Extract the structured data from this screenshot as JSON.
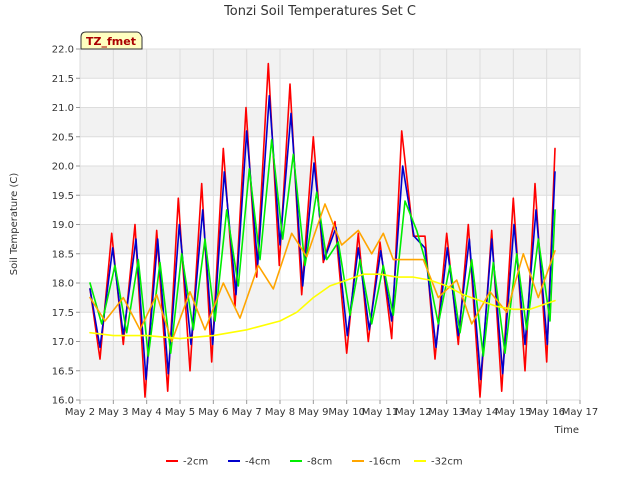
{
  "chart_data": {
    "type": "line",
    "title": "Tonzi Soil Temperatures Set C",
    "tag": "TZ_fmet",
    "xlabel": "Time",
    "ylabel": "Soil Temperature (C)",
    "xlim": [
      2,
      17
    ],
    "ylim": [
      16.0,
      22.0
    ],
    "x_ticks": [
      2,
      3,
      4,
      5,
      6,
      7,
      8,
      9,
      10,
      11,
      12,
      13,
      14,
      15,
      16,
      17
    ],
    "x_tick_labels": [
      "May 2",
      "May 3",
      "May 4",
      "May 5",
      "May 6",
      "May 7",
      "May 8",
      "May 9",
      "May 10",
      "May 11",
      "May 12",
      "May 13",
      "May 14",
      "May 15",
      "May 16",
      "May 17"
    ],
    "y_ticks": [
      16.0,
      16.5,
      17.0,
      17.5,
      18.0,
      18.5,
      19.0,
      19.5,
      20.0,
      20.5,
      21.0,
      21.5,
      22.0
    ],
    "y_tick_labels": [
      "16.0",
      "16.5",
      "17.0",
      "17.5",
      "18.0",
      "18.5",
      "19.0",
      "19.5",
      "20.0",
      "20.5",
      "21.0",
      "21.5",
      "22.0"
    ],
    "grid": true,
    "legend_position": "bottom",
    "series": [
      {
        "name": "-2cm",
        "color": "#ff0000",
        "x": [
          2.3,
          2.6,
          2.95,
          3.3,
          3.65,
          3.95,
          4.3,
          4.63,
          4.95,
          5.3,
          5.65,
          5.95,
          6.3,
          6.65,
          6.98,
          7.3,
          7.65,
          7.98,
          8.3,
          8.65,
          9.0,
          9.3,
          9.65,
          10.0,
          10.35,
          10.65,
          11.0,
          11.35,
          11.65,
          12.0,
          12.35,
          12.65,
          13.0,
          13.35,
          13.65,
          14.0,
          14.35,
          14.65,
          15.0,
          15.35,
          15.65,
          16.0,
          16.25
        ],
        "y": [
          17.9,
          16.7,
          18.85,
          16.95,
          19.0,
          16.05,
          18.9,
          16.15,
          19.45,
          16.5,
          19.7,
          16.65,
          20.3,
          17.6,
          21.0,
          18.1,
          21.75,
          18.3,
          21.4,
          17.8,
          20.5,
          18.35,
          19.05,
          16.8,
          18.85,
          17.0,
          18.7,
          17.05,
          20.6,
          18.8,
          18.8,
          16.7,
          18.85,
          16.95,
          19.0,
          16.05,
          18.9,
          16.15,
          19.45,
          16.5,
          19.7,
          16.65,
          20.3
        ]
      },
      {
        "name": "-4cm",
        "color": "#0000cc",
        "x": [
          2.3,
          2.6,
          2.98,
          3.3,
          3.68,
          3.98,
          4.33,
          4.65,
          4.98,
          5.33,
          5.68,
          5.98,
          6.33,
          6.68,
          7.0,
          7.33,
          7.68,
          8.0,
          8.33,
          8.68,
          9.02,
          9.33,
          9.68,
          10.02,
          10.35,
          10.68,
          11.02,
          11.35,
          11.68,
          12.02,
          12.35,
          12.68,
          13.02,
          13.35,
          13.68,
          14.02,
          14.35,
          14.68,
          15.02,
          15.35,
          15.68,
          16.02,
          16.25
        ],
        "y": [
          17.9,
          16.9,
          18.6,
          17.1,
          18.75,
          16.35,
          18.75,
          16.45,
          19.0,
          16.95,
          19.25,
          16.95,
          19.9,
          17.8,
          20.6,
          18.3,
          21.2,
          18.65,
          20.9,
          17.95,
          20.05,
          18.4,
          18.95,
          17.1,
          18.6,
          17.2,
          18.55,
          17.35,
          20.0,
          18.8,
          18.6,
          16.9,
          18.6,
          17.1,
          18.75,
          16.35,
          18.75,
          16.45,
          19.0,
          16.95,
          19.25,
          16.95,
          19.9
        ]
      },
      {
        "name": "-8cm",
        "color": "#00ee00",
        "x": [
          2.3,
          2.65,
          3.05,
          3.4,
          3.75,
          4.05,
          4.4,
          4.72,
          5.05,
          5.4,
          5.75,
          6.05,
          6.4,
          6.75,
          7.08,
          7.4,
          7.75,
          8.08,
          8.4,
          8.75,
          9.1,
          9.4,
          9.75,
          10.1,
          10.4,
          10.75,
          11.1,
          11.4,
          11.75,
          12.1,
          12.4,
          12.75,
          13.1,
          13.4,
          13.75,
          14.1,
          14.4,
          14.75,
          15.1,
          15.4,
          15.75,
          16.1,
          16.25
        ],
        "y": [
          18.0,
          17.3,
          18.3,
          17.15,
          18.4,
          16.75,
          18.35,
          16.8,
          18.5,
          17.2,
          18.75,
          17.35,
          19.25,
          17.95,
          19.95,
          18.4,
          20.45,
          18.75,
          20.2,
          18.3,
          19.55,
          18.4,
          18.7,
          17.45,
          18.4,
          17.3,
          18.3,
          17.45,
          19.4,
          18.9,
          18.3,
          17.3,
          18.3,
          17.15,
          18.4,
          16.75,
          18.35,
          16.8,
          18.5,
          17.2,
          18.75,
          17.35,
          19.25
        ]
      },
      {
        "name": "-16cm",
        "color": "#ffa500",
        "x": [
          2.3,
          2.75,
          3.3,
          3.8,
          4.3,
          4.75,
          5.3,
          5.75,
          6.3,
          6.8,
          7.35,
          7.8,
          8.35,
          8.8,
          9.35,
          9.85,
          10.35,
          10.75,
          11.1,
          11.4,
          11.8,
          12.3,
          12.75,
          13.3,
          13.75,
          14.3,
          14.8,
          15.3,
          15.75,
          16.25
        ],
        "y": [
          17.75,
          17.35,
          17.75,
          17.2,
          17.8,
          17.0,
          17.85,
          17.2,
          18.0,
          17.4,
          18.3,
          17.9,
          18.85,
          18.45,
          19.35,
          18.65,
          18.9,
          18.5,
          18.85,
          18.4,
          18.4,
          18.4,
          17.75,
          18.05,
          17.3,
          17.85,
          17.5,
          18.5,
          17.75,
          18.55
        ]
      },
      {
        "name": "-32cm",
        "color": "#ffff00",
        "x": [
          2.3,
          3.0,
          4.0,
          5.0,
          6.0,
          7.0,
          8.0,
          8.5,
          9.0,
          9.5,
          10.0,
          10.5,
          11.0,
          11.5,
          12.0,
          12.5,
          13.0,
          13.5,
          14.0,
          14.5,
          15.0,
          15.5,
          16.0,
          16.25
        ],
        "y": [
          17.15,
          17.1,
          17.1,
          17.05,
          17.1,
          17.2,
          17.35,
          17.5,
          17.75,
          17.95,
          18.05,
          18.15,
          18.15,
          18.1,
          18.1,
          18.05,
          17.95,
          17.8,
          17.7,
          17.6,
          17.55,
          17.55,
          17.65,
          17.7
        ]
      }
    ]
  }
}
